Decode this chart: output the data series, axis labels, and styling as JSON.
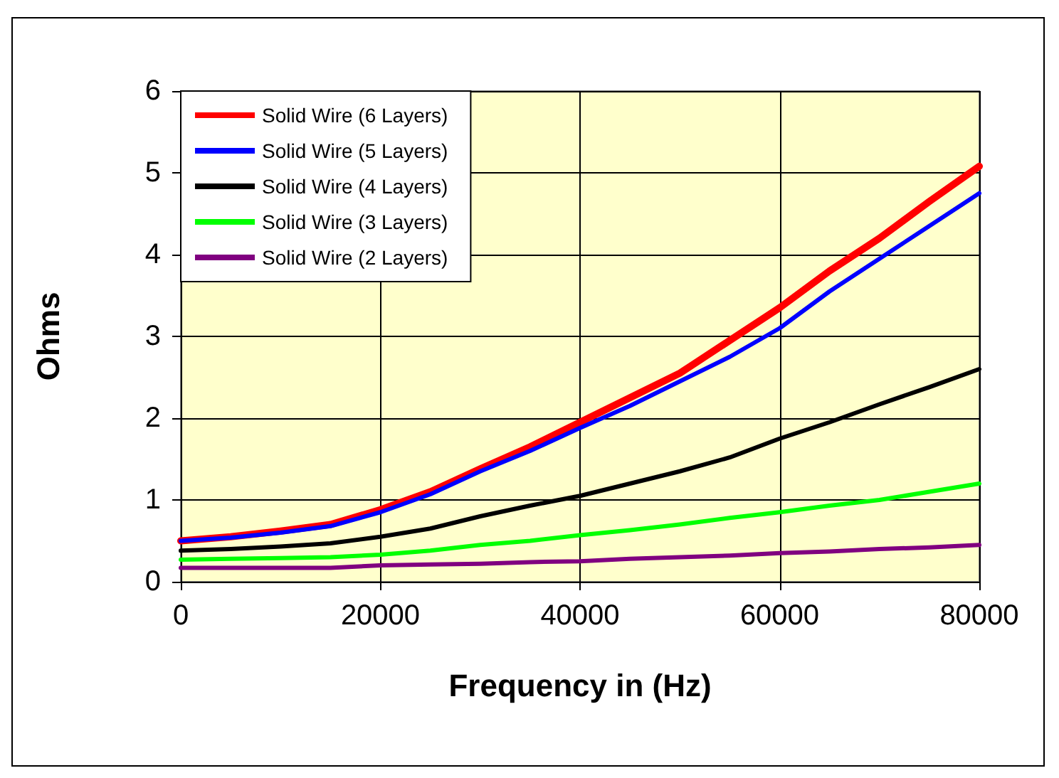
{
  "chart_data": {
    "type": "line",
    "xlabel": "Frequency in (Hz)",
    "ylabel": "Ohms",
    "x": [
      0,
      5000,
      10000,
      15000,
      20000,
      25000,
      30000,
      35000,
      40000,
      45000,
      50000,
      55000,
      60000,
      65000,
      70000,
      75000,
      80000
    ],
    "series": [
      {
        "name": "Solid Wire (6 Layers)",
        "color": "#ff0000",
        "values": [
          0.5,
          0.55,
          0.62,
          0.7,
          0.88,
          1.1,
          1.38,
          1.65,
          1.95,
          2.25,
          2.55,
          2.95,
          3.35,
          3.8,
          4.2,
          4.65,
          5.08
        ]
      },
      {
        "name": "Solid Wire (5 Layers)",
        "color": "#0000ff",
        "values": [
          0.5,
          0.54,
          0.6,
          0.68,
          0.85,
          1.07,
          1.35,
          1.6,
          1.88,
          2.15,
          2.45,
          2.75,
          3.1,
          3.55,
          3.95,
          4.35,
          4.75
        ]
      },
      {
        "name": "Solid Wire (4 Layers)",
        "color": "#000000",
        "values": [
          0.38,
          0.4,
          0.43,
          0.47,
          0.55,
          0.65,
          0.8,
          0.93,
          1.05,
          1.2,
          1.35,
          1.52,
          1.75,
          1.95,
          2.17,
          2.38,
          2.6
        ]
      },
      {
        "name": "Solid Wire (3 Layers)",
        "color": "#00ff00",
        "values": [
          0.27,
          0.28,
          0.29,
          0.3,
          0.33,
          0.38,
          0.45,
          0.5,
          0.57,
          0.63,
          0.7,
          0.78,
          0.85,
          0.93,
          1.0,
          1.1,
          1.2
        ]
      },
      {
        "name": "Solid Wire (2 Layers)",
        "color": "#800080",
        "values": [
          0.17,
          0.17,
          0.17,
          0.17,
          0.2,
          0.21,
          0.22,
          0.24,
          0.25,
          0.28,
          0.3,
          0.32,
          0.35,
          0.37,
          0.4,
          0.42,
          0.45
        ]
      }
    ],
    "xlim": [
      0,
      80000
    ],
    "xticks": [
      0,
      20000,
      40000,
      60000,
      80000
    ],
    "ylim": [
      0,
      6
    ],
    "yticks": [
      0,
      1,
      2,
      3,
      4,
      5,
      6
    ],
    "grid": true,
    "legend": "top left",
    "marker": "none",
    "line_style": "solid"
  }
}
